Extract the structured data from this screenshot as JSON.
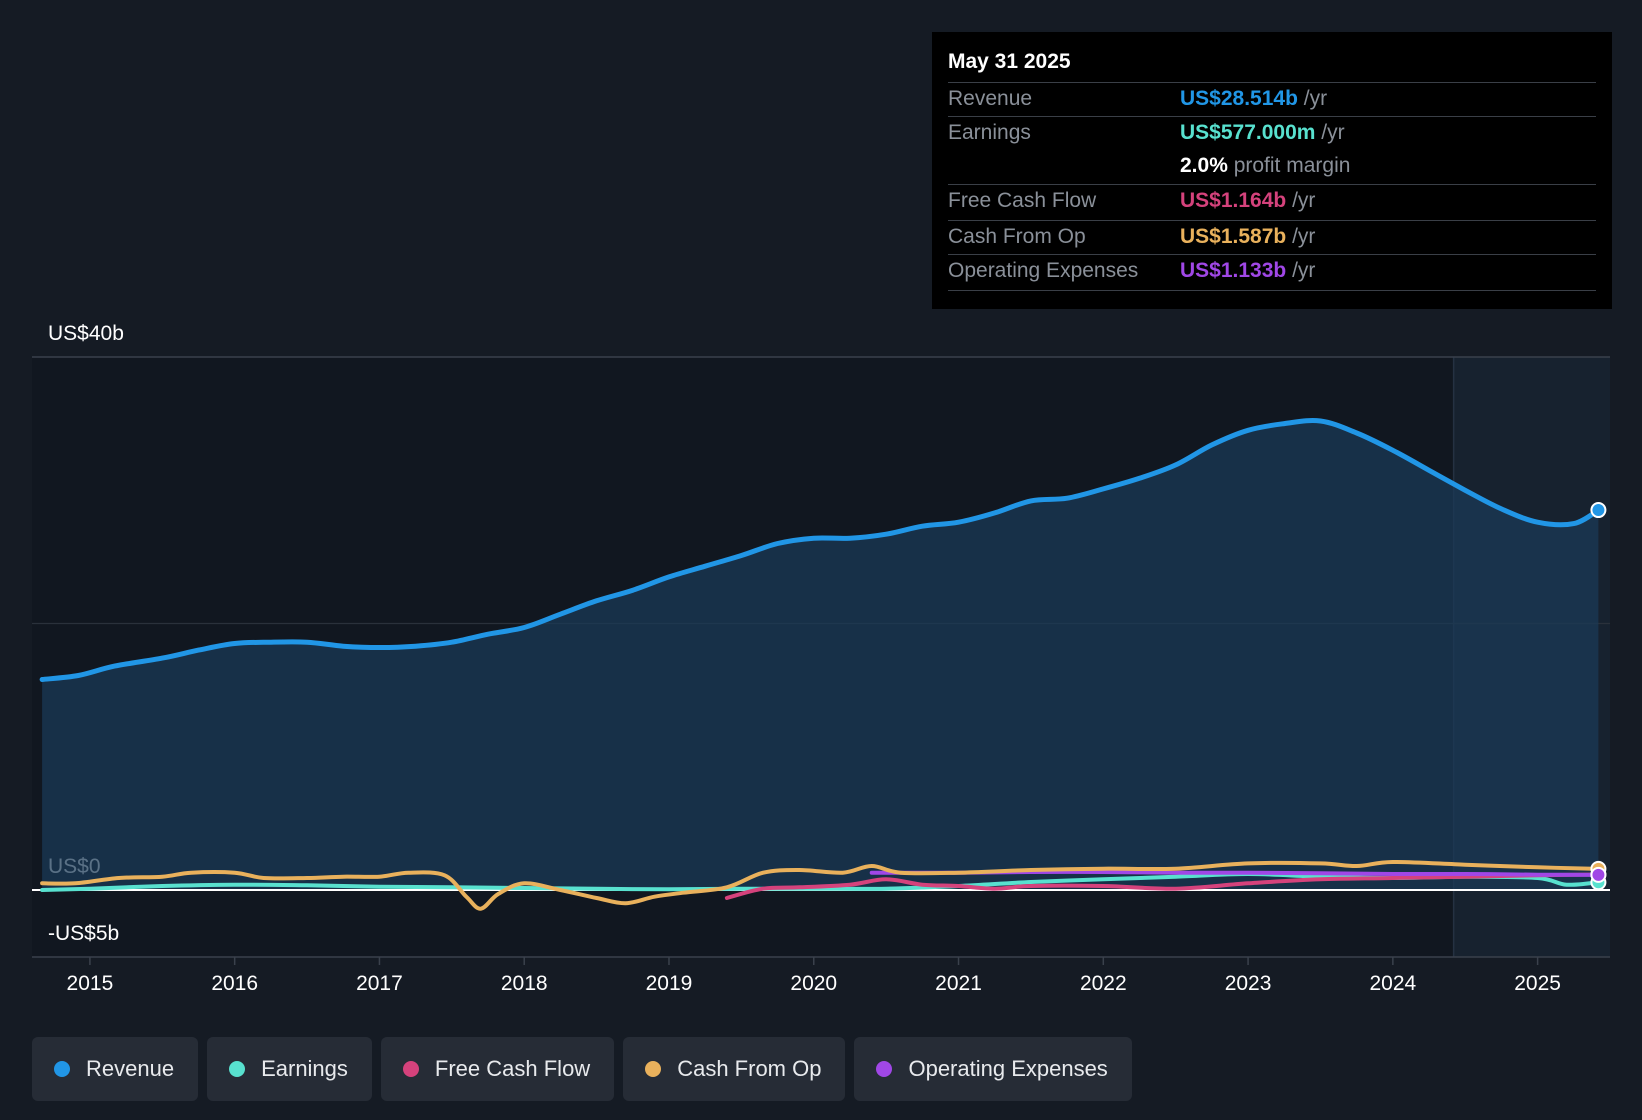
{
  "chart_data": {
    "type": "line",
    "title": "",
    "x_label": "",
    "y_label": "",
    "xlim": [
      2014.6,
      2025.5
    ],
    "ylim": [
      -5,
      40
    ],
    "y_ticks": [
      {
        "value": 40,
        "label": "US$40b"
      },
      {
        "value": 0,
        "label": "US$0"
      },
      {
        "value": -5,
        "label": "-US$5b"
      }
    ],
    "x_ticks": [
      {
        "value": 2015,
        "label": "2015"
      },
      {
        "value": 2016,
        "label": "2016"
      },
      {
        "value": 2017,
        "label": "2017"
      },
      {
        "value": 2018,
        "label": "2018"
      },
      {
        "value": 2019,
        "label": "2019"
      },
      {
        "value": 2020,
        "label": "2020"
      },
      {
        "value": 2021,
        "label": "2021"
      },
      {
        "value": 2022,
        "label": "2022"
      },
      {
        "value": 2023,
        "label": "2023"
      },
      {
        "value": 2024,
        "label": "2024"
      },
      {
        "value": 2025,
        "label": "2025"
      }
    ],
    "highlight_start": 2024.42,
    "series": [
      {
        "name": "Revenue",
        "color": "#2196e6",
        "area": true,
        "points": [
          [
            2014.67,
            15.8
          ],
          [
            2014.92,
            16.1
          ],
          [
            2015.17,
            16.8
          ],
          [
            2015.5,
            17.4
          ],
          [
            2015.75,
            18.0
          ],
          [
            2016.0,
            18.5
          ],
          [
            2016.25,
            18.6
          ],
          [
            2016.5,
            18.6
          ],
          [
            2016.75,
            18.3
          ],
          [
            2017.0,
            18.2
          ],
          [
            2017.25,
            18.3
          ],
          [
            2017.5,
            18.6
          ],
          [
            2017.75,
            19.2
          ],
          [
            2018.0,
            19.7
          ],
          [
            2018.25,
            20.7
          ],
          [
            2018.5,
            21.7
          ],
          [
            2018.75,
            22.5
          ],
          [
            2019.0,
            23.5
          ],
          [
            2019.25,
            24.3
          ],
          [
            2019.5,
            25.1
          ],
          [
            2019.75,
            26.0
          ],
          [
            2020.0,
            26.4
          ],
          [
            2020.25,
            26.4
          ],
          [
            2020.5,
            26.7
          ],
          [
            2020.75,
            27.3
          ],
          [
            2021.0,
            27.6
          ],
          [
            2021.25,
            28.3
          ],
          [
            2021.5,
            29.2
          ],
          [
            2021.75,
            29.4
          ],
          [
            2022.0,
            30.1
          ],
          [
            2022.25,
            30.9
          ],
          [
            2022.5,
            31.9
          ],
          [
            2022.75,
            33.4
          ],
          [
            2023.0,
            34.5
          ],
          [
            2023.25,
            35.0
          ],
          [
            2023.5,
            35.2
          ],
          [
            2023.75,
            34.3
          ],
          [
            2024.0,
            33.0
          ],
          [
            2024.25,
            31.5
          ],
          [
            2024.5,
            30.0
          ],
          [
            2024.75,
            28.6
          ],
          [
            2025.0,
            27.6
          ],
          [
            2025.25,
            27.5
          ],
          [
            2025.42,
            28.514
          ]
        ]
      },
      {
        "name": "Earnings",
        "color": "#58e1cf",
        "area": false,
        "points": [
          [
            2014.67,
            0.0
          ],
          [
            2015.0,
            0.1
          ],
          [
            2015.5,
            0.3
          ],
          [
            2016.0,
            0.4
          ],
          [
            2016.5,
            0.35
          ],
          [
            2017.0,
            0.25
          ],
          [
            2017.5,
            0.2
          ],
          [
            2018.0,
            0.15
          ],
          [
            2018.5,
            0.1
          ],
          [
            2019.0,
            0.05
          ],
          [
            2019.5,
            0.1
          ],
          [
            2020.0,
            0.1
          ],
          [
            2020.5,
            0.1
          ],
          [
            2021.0,
            0.3
          ],
          [
            2021.5,
            0.6
          ],
          [
            2022.0,
            0.8
          ],
          [
            2022.5,
            1.0
          ],
          [
            2023.0,
            1.2
          ],
          [
            2023.5,
            1.0
          ],
          [
            2024.0,
            0.9
          ],
          [
            2024.5,
            1.0
          ],
          [
            2025.0,
            0.9
          ],
          [
            2025.2,
            0.4
          ],
          [
            2025.42,
            0.577
          ]
        ]
      },
      {
        "name": "Free Cash Flow",
        "color": "#d5427c",
        "area": false,
        "points": [
          [
            2019.4,
            -0.6
          ],
          [
            2019.65,
            0.1
          ],
          [
            2019.9,
            0.2
          ],
          [
            2020.25,
            0.4
          ],
          [
            2020.5,
            0.8
          ],
          [
            2020.75,
            0.4
          ],
          [
            2021.0,
            0.3
          ],
          [
            2021.25,
            0.1
          ],
          [
            2021.5,
            0.3
          ],
          [
            2022.0,
            0.3
          ],
          [
            2022.5,
            0.1
          ],
          [
            2023.0,
            0.5
          ],
          [
            2023.5,
            0.8
          ],
          [
            2024.0,
            0.9
          ],
          [
            2024.5,
            1.0
          ],
          [
            2025.0,
            1.1
          ],
          [
            2025.42,
            1.164
          ]
        ]
      },
      {
        "name": "Cash From Op",
        "color": "#e9b15c",
        "area": false,
        "points": [
          [
            2014.67,
            0.5
          ],
          [
            2014.9,
            0.5
          ],
          [
            2015.2,
            0.9
          ],
          [
            2015.5,
            1.0
          ],
          [
            2015.7,
            1.3
          ],
          [
            2016.0,
            1.3
          ],
          [
            2016.2,
            0.9
          ],
          [
            2016.5,
            0.9
          ],
          [
            2016.75,
            1.0
          ],
          [
            2017.0,
            1.0
          ],
          [
            2017.2,
            1.3
          ],
          [
            2017.45,
            1.1
          ],
          [
            2017.6,
            -0.5
          ],
          [
            2017.7,
            -1.4
          ],
          [
            2017.82,
            -0.3
          ],
          [
            2018.0,
            0.5
          ],
          [
            2018.25,
            0.0
          ],
          [
            2018.5,
            -0.6
          ],
          [
            2018.7,
            -1.0
          ],
          [
            2018.9,
            -0.5
          ],
          [
            2019.1,
            -0.2
          ],
          [
            2019.4,
            0.2
          ],
          [
            2019.65,
            1.3
          ],
          [
            2019.9,
            1.5
          ],
          [
            2020.2,
            1.3
          ],
          [
            2020.4,
            1.8
          ],
          [
            2020.6,
            1.3
          ],
          [
            2021.0,
            1.3
          ],
          [
            2021.5,
            1.5
          ],
          [
            2022.0,
            1.6
          ],
          [
            2022.5,
            1.6
          ],
          [
            2023.0,
            2.0
          ],
          [
            2023.5,
            2.0
          ],
          [
            2023.75,
            1.8
          ],
          [
            2024.0,
            2.1
          ],
          [
            2024.5,
            1.9
          ],
          [
            2025.0,
            1.7
          ],
          [
            2025.42,
            1.587
          ]
        ]
      },
      {
        "name": "Operating Expenses",
        "color": "#a047e6",
        "area": false,
        "points": [
          [
            2020.4,
            1.3
          ],
          [
            2021.0,
            1.3
          ],
          [
            2021.5,
            1.35
          ],
          [
            2022.0,
            1.35
          ],
          [
            2022.5,
            1.3
          ],
          [
            2023.0,
            1.3
          ],
          [
            2023.5,
            1.25
          ],
          [
            2024.0,
            1.2
          ],
          [
            2024.5,
            1.2
          ],
          [
            2025.0,
            1.15
          ],
          [
            2025.42,
            1.133
          ]
        ]
      }
    ]
  },
  "tooltip": {
    "date": "May 31 2025",
    "rows": [
      {
        "label": "Revenue",
        "value": "US$28.514b",
        "suffix": " /yr",
        "color": "#2196e6"
      },
      {
        "label": "Earnings",
        "value": "US$577.000m",
        "suffix": " /yr",
        "color": "#58e1cf"
      },
      {
        "label": "",
        "value": "2.0%",
        "suffix": " profit margin",
        "color": "#ffffff"
      },
      {
        "label": "Free Cash Flow",
        "value": "US$1.164b",
        "suffix": " /yr",
        "color": "#d5427c"
      },
      {
        "label": "Cash From Op",
        "value": "US$1.587b",
        "suffix": " /yr",
        "color": "#e9b15c"
      },
      {
        "label": "Operating Expenses",
        "value": "US$1.133b",
        "suffix": " /yr",
        "color": "#a047e6"
      }
    ]
  },
  "legend": [
    {
      "label": "Revenue",
      "color": "#2196e6"
    },
    {
      "label": "Earnings",
      "color": "#58e1cf"
    },
    {
      "label": "Free Cash Flow",
      "color": "#d5427c"
    },
    {
      "label": "Cash From Op",
      "color": "#e9b15c"
    },
    {
      "label": "Operating Expenses",
      "color": "#a047e6"
    }
  ]
}
